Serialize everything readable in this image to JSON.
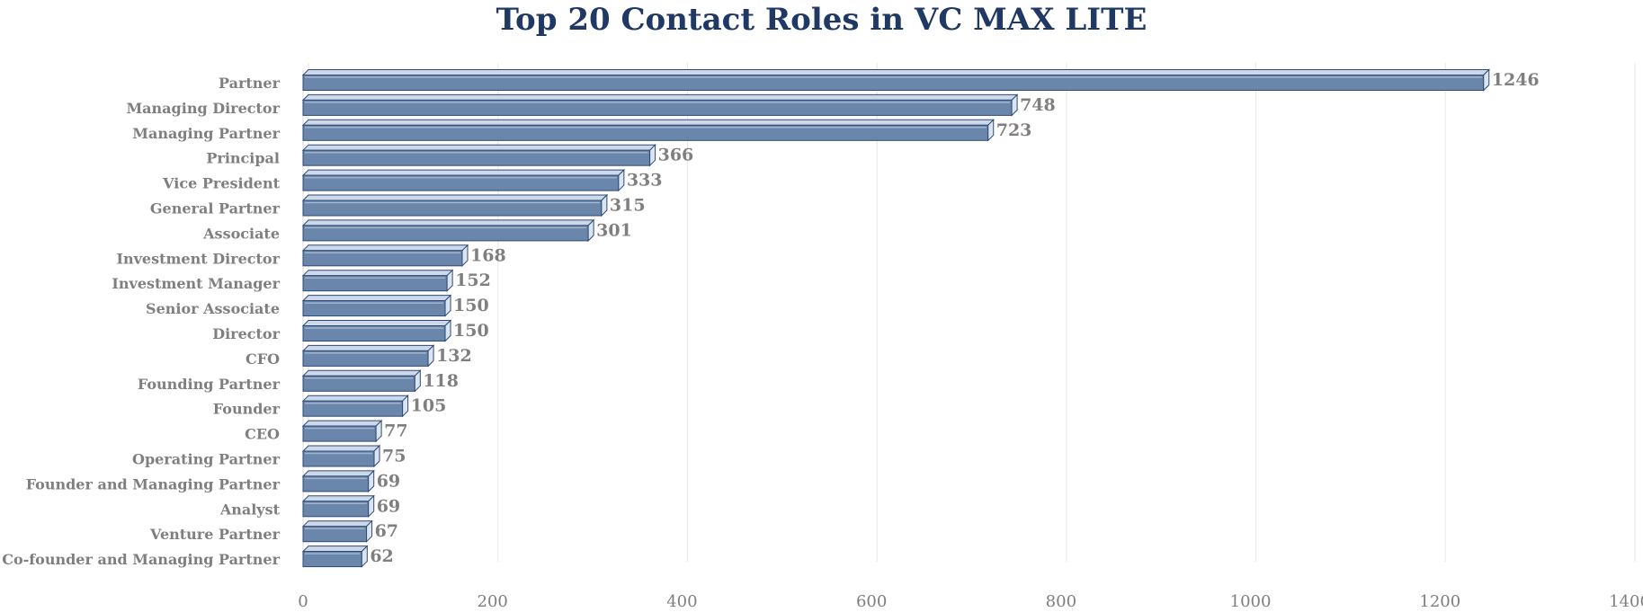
{
  "chart_data": {
    "type": "bar",
    "orientation": "horizontal",
    "title": "Top 20 Contact Roles in VC MAX LITE",
    "categories": [
      "Partner",
      "Managing Director",
      "Managing Partner",
      "Principal",
      "Vice President",
      "General Partner",
      "Associate",
      "Investment Director",
      "Investment Manager",
      "Senior Associate",
      "Director",
      "CFO",
      "Founding Partner",
      "Founder",
      "CEO",
      "Operating Partner",
      "Founder and Managing Partner",
      "Analyst",
      "Venture Partner",
      "Co-founder and Managing Partner"
    ],
    "values": [
      1246,
      748,
      723,
      366,
      333,
      315,
      301,
      168,
      152,
      150,
      150,
      132,
      118,
      105,
      77,
      75,
      69,
      69,
      67,
      62
    ],
    "xlim": [
      0,
      1400
    ],
    "xticks": [
      "0",
      "200",
      "400",
      "600",
      "800",
      "1000",
      "1200",
      "1400"
    ],
    "xlabel": "",
    "ylabel": "",
    "grid": true,
    "legend": "none",
    "data_labels": true,
    "colors": {
      "bar": "#6b86ab",
      "bar_top": "#cdd9ea",
      "bar_side": "#dbe4f1",
      "bar_edge": "#2f4a72",
      "title": "#1f3864",
      "label": "#7f7f7f",
      "grid": "#e6e6e6"
    }
  }
}
